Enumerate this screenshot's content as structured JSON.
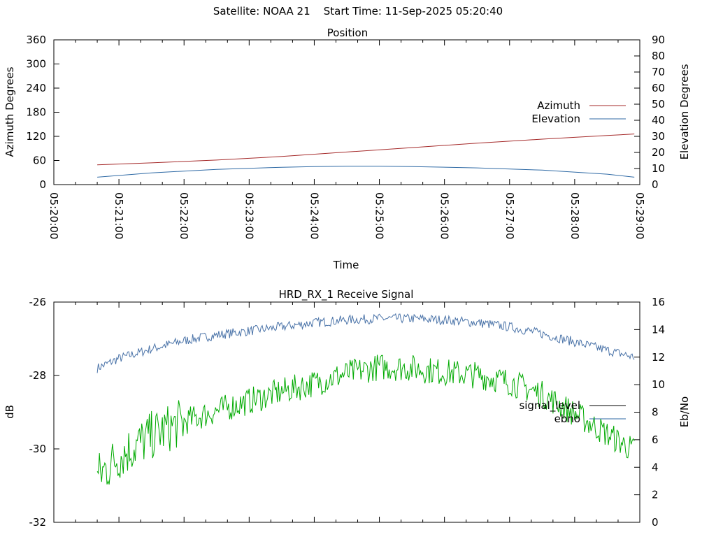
{
  "header": {
    "satellite_label": "Satellite: NOAA 21",
    "start_label": "Start Time: 11-Sep-2025 05:20:40"
  },
  "colors": {
    "azimuth": "#a52a2a",
    "elevation": "#2f6aa5",
    "signal_level": "#000000",
    "ebno": "#2f6aa5",
    "ebno_trace": "#4a73a8",
    "signal_trace": "#00aa00"
  },
  "chart_data": [
    {
      "id": "position",
      "type": "line",
      "title": "Position",
      "xlabel": "Time",
      "ylabel_left": "Azimuth Degrees",
      "ylabel_right": "Elevation Degrees",
      "x_ticks": [
        "05:20:00",
        "05:21:00",
        "05:22:00",
        "05:23:00",
        "05:24:00",
        "05:25:00",
        "05:26:00",
        "05:27:00",
        "05:28:00",
        "05:29:00"
      ],
      "xlim": [
        "05:20:00",
        "05:29:00"
      ],
      "ylim_left": [
        0,
        360
      ],
      "yticks_left": [
        0,
        60,
        120,
        180,
        240,
        300,
        360
      ],
      "ylim_right": [
        0,
        90
      ],
      "yticks_right": [
        0,
        10,
        20,
        30,
        40,
        50,
        60,
        70,
        80,
        90
      ],
      "legend_position": "right",
      "grid": false,
      "series": [
        {
          "name": "Azimuth",
          "axis": "left",
          "x": [
            "05:20:40",
            "05:21:30",
            "05:22:30",
            "05:23:30",
            "05:24:30",
            "05:25:30",
            "05:26:30",
            "05:27:30",
            "05:28:30",
            "05:28:55"
          ],
          "y": [
            49,
            54,
            61,
            70,
            81,
            92,
            103,
            113,
            122,
            126
          ]
        },
        {
          "name": "Elevation",
          "axis": "right",
          "x": [
            "05:20:40",
            "05:21:30",
            "05:22:30",
            "05:23:30",
            "05:24:00",
            "05:24:30",
            "05:25:00",
            "05:25:30",
            "05:26:30",
            "05:27:30",
            "05:28:30",
            "05:28:55"
          ],
          "y": [
            4.6,
            7.3,
            9.5,
            10.8,
            11.2,
            11.4,
            11.4,
            11.2,
            10.4,
            9.0,
            6.5,
            4.6
          ]
        }
      ]
    },
    {
      "id": "receive-signal",
      "type": "line",
      "title": "HRD_RX_1 Receive Signal",
      "ylabel_left": "dB",
      "ylabel_right": "Eb/No",
      "xlim": [
        "05:20:00",
        "05:29:00"
      ],
      "ylim_left": [
        -32,
        -26
      ],
      "yticks_left": [
        -32,
        -30,
        -28,
        -26
      ],
      "ylim_right": [
        0,
        16
      ],
      "yticks_right": [
        0,
        2,
        4,
        6,
        8,
        10,
        12,
        14,
        16
      ],
      "legend_position": "right",
      "grid": false,
      "series": [
        {
          "name": "signal_level",
          "axis": "left",
          "x": [],
          "y": []
        },
        {
          "name": "ebno",
          "axis": "right",
          "x": [
            "05:20:40",
            "05:21:00",
            "05:21:30",
            "05:22:00",
            "05:22:30",
            "05:23:00",
            "05:23:30",
            "05:24:00",
            "05:24:30",
            "05:25:00",
            "05:25:30",
            "05:26:00",
            "05:26:30",
            "05:27:00",
            "05:27:30",
            "05:28:00",
            "05:28:30",
            "05:28:55"
          ],
          "y": [
            11.2,
            11.9,
            12.6,
            13.2,
            13.6,
            13.9,
            14.2,
            14.5,
            14.7,
            14.8,
            14.8,
            14.7,
            14.5,
            14.2,
            13.7,
            13.1,
            12.5,
            12.0
          ]
        },
        {
          "axis": "right",
          "x": [
            "05:20:40",
            "05:21:00",
            "05:21:30",
            "05:22:00",
            "05:22:30",
            "05:23:00",
            "05:23:30",
            "05:24:00",
            "05:24:30",
            "05:25:00",
            "05:25:30",
            "05:26:00",
            "05:26:30",
            "05:27:00",
            "05:27:30",
            "05:28:00",
            "05:28:30",
            "05:28:55"
          ],
          "y": [
            3.3,
            4.8,
            6.3,
            7.3,
            8.1,
            8.8,
            9.5,
            10.1,
            10.8,
            11.3,
            11.2,
            10.9,
            10.7,
            10.2,
            9.3,
            7.9,
            6.4,
            5.2
          ]
        }
      ]
    }
  ]
}
